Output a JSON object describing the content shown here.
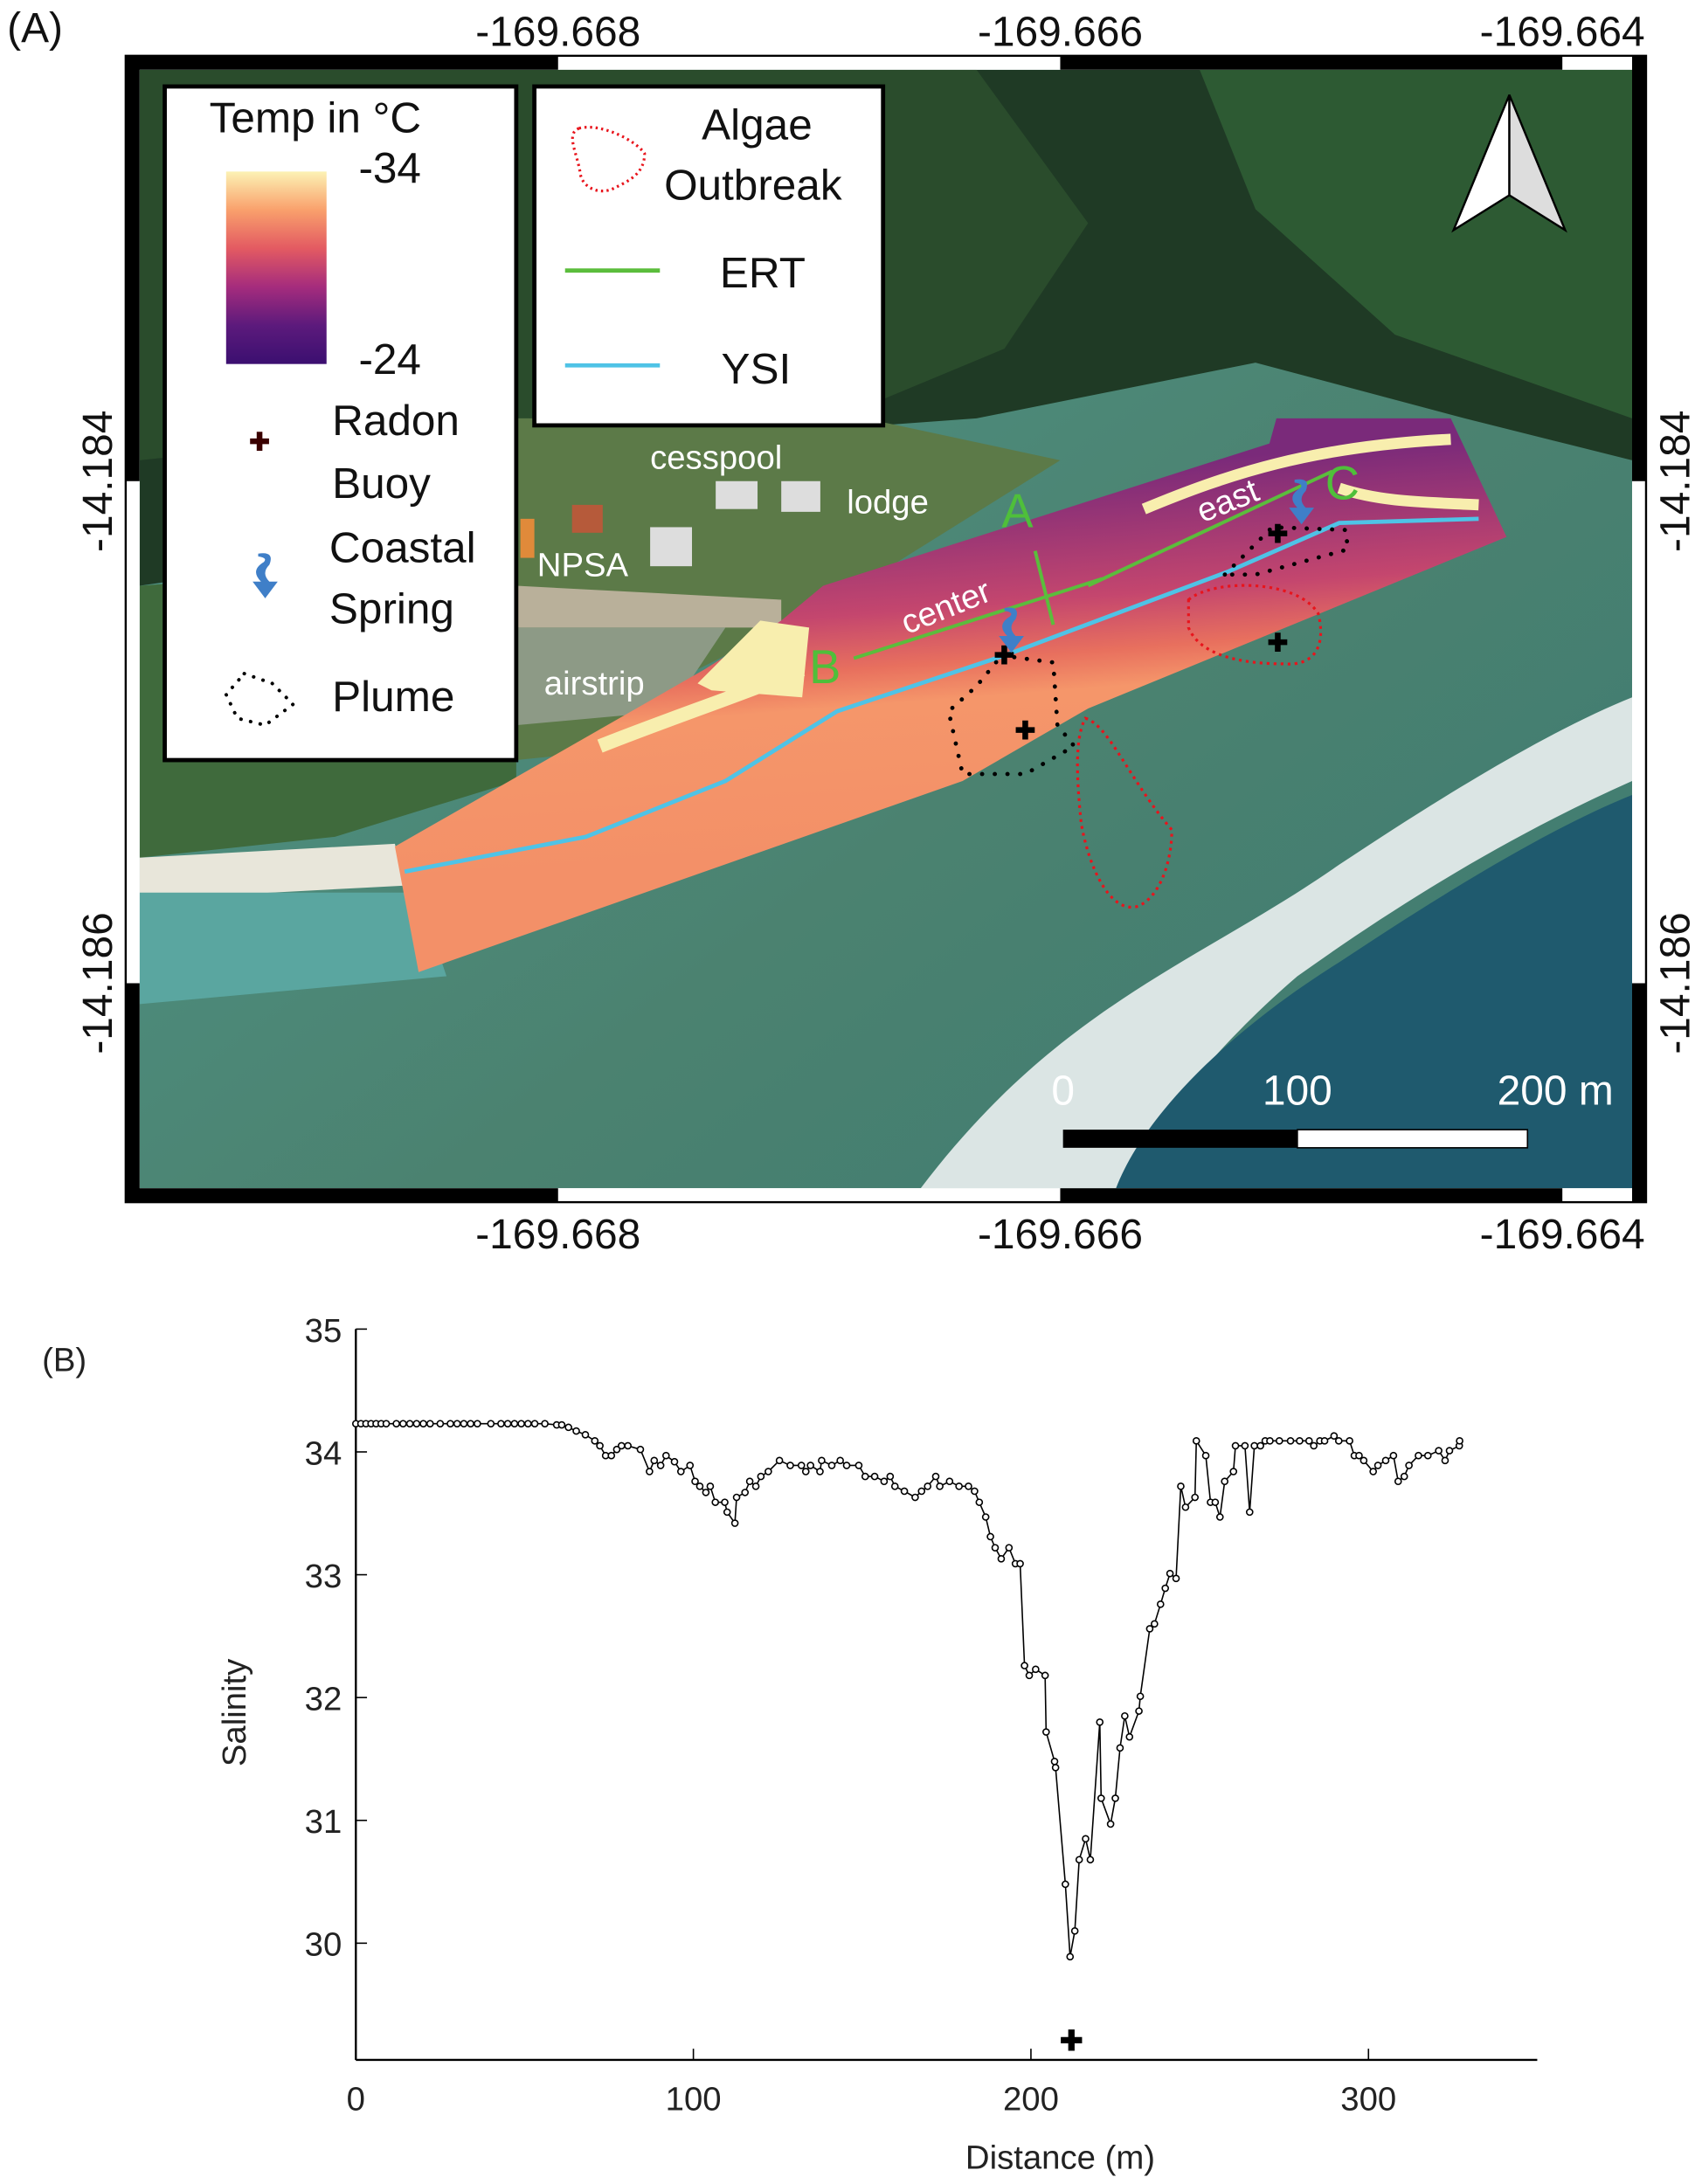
{
  "panel_a": {
    "label": "(A)",
    "lon_ticks": [
      "-169.668",
      "-169.666",
      "-169.664"
    ],
    "lat_ticks": [
      "-14.184",
      "-14.186"
    ],
    "legend_temp": {
      "title": "Temp in °C",
      "max": "-34",
      "min": "-24",
      "colors": [
        "#fcf2b4",
        "#f9a06c",
        "#e35a62",
        "#a52c7d",
        "#5c1a7c",
        "#3b0f70"
      ]
    },
    "legend_symbols": [
      {
        "icon": "radon-buoy-plus-icon",
        "lines": [
          "Radon",
          "Buoy"
        ]
      },
      {
        "icon": "coastal-spring-arrow-icon",
        "lines": [
          "Coastal",
          "Spring"
        ]
      },
      {
        "icon": "plume-dotted-outline-icon",
        "lines": [
          "Plume"
        ]
      }
    ],
    "legend_lines": [
      {
        "icon": "algae-dotted-outline-icon",
        "lines": [
          "Algae",
          "Outbreak"
        ],
        "color": "#e8141c"
      },
      {
        "lines": [
          "ERT"
        ],
        "color": "#5bbd3c"
      },
      {
        "lines": [
          "YSI"
        ],
        "color": "#4fc3e6"
      }
    ],
    "place_labels": [
      "cesspool",
      "lodge",
      "NPSA",
      "airstrip"
    ],
    "transect_labels": [
      "A",
      "B",
      "C"
    ],
    "zone_labels": [
      "center",
      "east"
    ],
    "scale_bar": [
      "0",
      "100",
      "200 m"
    ]
  },
  "chart_data": {
    "type": "scatter",
    "panel_label": "(B)",
    "xlabel": "Distance (m)",
    "ylabel": "Salinity",
    "xlim": [
      0,
      350
    ],
    "ylim": [
      29.05,
      35
    ],
    "xticks": [
      0,
      100,
      200,
      300
    ],
    "yticks": [
      30,
      31,
      32,
      33,
      34,
      35
    ],
    "grid": false,
    "line_connected": true,
    "points": [
      [
        0,
        34.23
      ],
      [
        1.5,
        34.23
      ],
      [
        3,
        34.23
      ],
      [
        4.5,
        34.23
      ],
      [
        6,
        34.23
      ],
      [
        7.5,
        34.23
      ],
      [
        9,
        34.23
      ],
      [
        12,
        34.23
      ],
      [
        14,
        34.23
      ],
      [
        16,
        34.23
      ],
      [
        18,
        34.23
      ],
      [
        20,
        34.23
      ],
      [
        22,
        34.23
      ],
      [
        25,
        34.23
      ],
      [
        28,
        34.23
      ],
      [
        30,
        34.23
      ],
      [
        32,
        34.23
      ],
      [
        34,
        34.23
      ],
      [
        36,
        34.23
      ],
      [
        40,
        34.23
      ],
      [
        43,
        34.23
      ],
      [
        45,
        34.23
      ],
      [
        47,
        34.23
      ],
      [
        49,
        34.23
      ],
      [
        51,
        34.23
      ],
      [
        53,
        34.23
      ],
      [
        56,
        34.23
      ],
      [
        59.5,
        34.22
      ],
      [
        61,
        34.22
      ],
      [
        63,
        34.2
      ],
      [
        65.3,
        34.17
      ],
      [
        68,
        34.14
      ],
      [
        70.8,
        34.09
      ],
      [
        72.3,
        34.05
      ],
      [
        74,
        33.97
      ],
      [
        75.7,
        33.97
      ],
      [
        77.3,
        34.02
      ],
      [
        78.7,
        34.05
      ],
      [
        80.6,
        34.05
      ],
      [
        84.3,
        34.02
      ],
      [
        87,
        33.84
      ],
      [
        88.4,
        33.93
      ],
      [
        90.3,
        33.89
      ],
      [
        91.9,
        33.97
      ],
      [
        94.4,
        33.92
      ],
      [
        96.3,
        33.84
      ],
      [
        99,
        33.89
      ],
      [
        100.5,
        33.76
      ],
      [
        101.9,
        33.72
      ],
      [
        103.7,
        33.67
      ],
      [
        105,
        33.72
      ],
      [
        106.5,
        33.59
      ],
      [
        109.3,
        33.59
      ],
      [
        110,
        33.51
      ],
      [
        112.3,
        33.42
      ],
      [
        112.8,
        33.63
      ],
      [
        115.3,
        33.67
      ],
      [
        116.7,
        33.76
      ],
      [
        118.5,
        33.72
      ],
      [
        120,
        33.8
      ],
      [
        122.2,
        33.84
      ],
      [
        125.5,
        33.93
      ],
      [
        128.7,
        33.89
      ],
      [
        132,
        33.89
      ],
      [
        133.3,
        33.84
      ],
      [
        134.7,
        33.89
      ],
      [
        137.5,
        33.84
      ],
      [
        138,
        33.93
      ],
      [
        141,
        33.89
      ],
      [
        143.5,
        33.93
      ],
      [
        145.4,
        33.89
      ],
      [
        149,
        33.89
      ],
      [
        150.9,
        33.8
      ],
      [
        153.7,
        33.8
      ],
      [
        156.5,
        33.76
      ],
      [
        158.3,
        33.8
      ],
      [
        159.7,
        33.72
      ],
      [
        162.5,
        33.68
      ],
      [
        165.7,
        33.63
      ],
      [
        167.6,
        33.68
      ],
      [
        169.4,
        33.72
      ],
      [
        171.8,
        33.8
      ],
      [
        173,
        33.72
      ],
      [
        175.9,
        33.76
      ],
      [
        178.7,
        33.72
      ],
      [
        181.5,
        33.72
      ],
      [
        183.3,
        33.68
      ],
      [
        184.7,
        33.59
      ],
      [
        186.6,
        33.47
      ],
      [
        188,
        33.31
      ],
      [
        189.4,
        33.22
      ],
      [
        191.2,
        33.13
      ],
      [
        193.5,
        33.22
      ],
      [
        195.4,
        33.09
      ],
      [
        196.8,
        33.09
      ],
      [
        198.1,
        32.26
      ],
      [
        199.5,
        32.18
      ],
      [
        201.4,
        32.23
      ],
      [
        204.2,
        32.18
      ],
      [
        204.5,
        31.72
      ],
      [
        207,
        31.48
      ],
      [
        207.3,
        31.43
      ],
      [
        210.2,
        30.48
      ],
      [
        211.6,
        29.89
      ],
      [
        213,
        30.1
      ],
      [
        214.3,
        30.68
      ],
      [
        216.2,
        30.85
      ],
      [
        217.6,
        30.68
      ],
      [
        220.4,
        31.8
      ],
      [
        220.8,
        31.18
      ],
      [
        223.6,
        30.97
      ],
      [
        225,
        31.18
      ],
      [
        226.4,
        31.59
      ],
      [
        227.8,
        31.85
      ],
      [
        229.2,
        31.68
      ],
      [
        232,
        31.89
      ],
      [
        232.4,
        32.01
      ],
      [
        235.2,
        32.56
      ],
      [
        236.6,
        32.6
      ],
      [
        238.4,
        32.76
      ],
      [
        239.8,
        32.89
      ],
      [
        241.2,
        33.01
      ],
      [
        243,
        32.97
      ],
      [
        244.4,
        33.72
      ],
      [
        245.8,
        33.55
      ],
      [
        248.6,
        33.63
      ],
      [
        249,
        34.09
      ],
      [
        251.8,
        33.97
      ],
      [
        253.2,
        33.59
      ],
      [
        254.6,
        33.59
      ],
      [
        256,
        33.47
      ],
      [
        257.4,
        33.76
      ],
      [
        260,
        33.84
      ],
      [
        260.6,
        34.05
      ],
      [
        263.4,
        34.05
      ],
      [
        264.8,
        33.51
      ],
      [
        266.2,
        34.05
      ],
      [
        268,
        34.05
      ],
      [
        269.4,
        34.09
      ],
      [
        270.8,
        34.09
      ],
      [
        273.6,
        34.09
      ],
      [
        276.9,
        34.09
      ],
      [
        279.6,
        34.09
      ],
      [
        282.4,
        34.09
      ],
      [
        283.8,
        34.05
      ],
      [
        285.6,
        34.09
      ],
      [
        287,
        34.09
      ],
      [
        289.8,
        34.13
      ],
      [
        291.2,
        34.09
      ],
      [
        294.4,
        34.09
      ],
      [
        295.8,
        33.97
      ],
      [
        297.2,
        33.97
      ],
      [
        298.6,
        33.93
      ],
      [
        301.4,
        33.84
      ],
      [
        302.8,
        33.89
      ],
      [
        305.1,
        33.93
      ],
      [
        307.4,
        33.97
      ],
      [
        308.8,
        33.76
      ],
      [
        310.6,
        33.8
      ],
      [
        312,
        33.89
      ],
      [
        314.8,
        33.97
      ],
      [
        317.6,
        33.97
      ],
      [
        320.8,
        34.01
      ],
      [
        322.7,
        33.93
      ],
      [
        324,
        34.01
      ],
      [
        326.9,
        34.05
      ],
      [
        327,
        34.09
      ]
    ],
    "radon_buoy_marker": {
      "x": 212,
      "y": 29.22
    }
  }
}
